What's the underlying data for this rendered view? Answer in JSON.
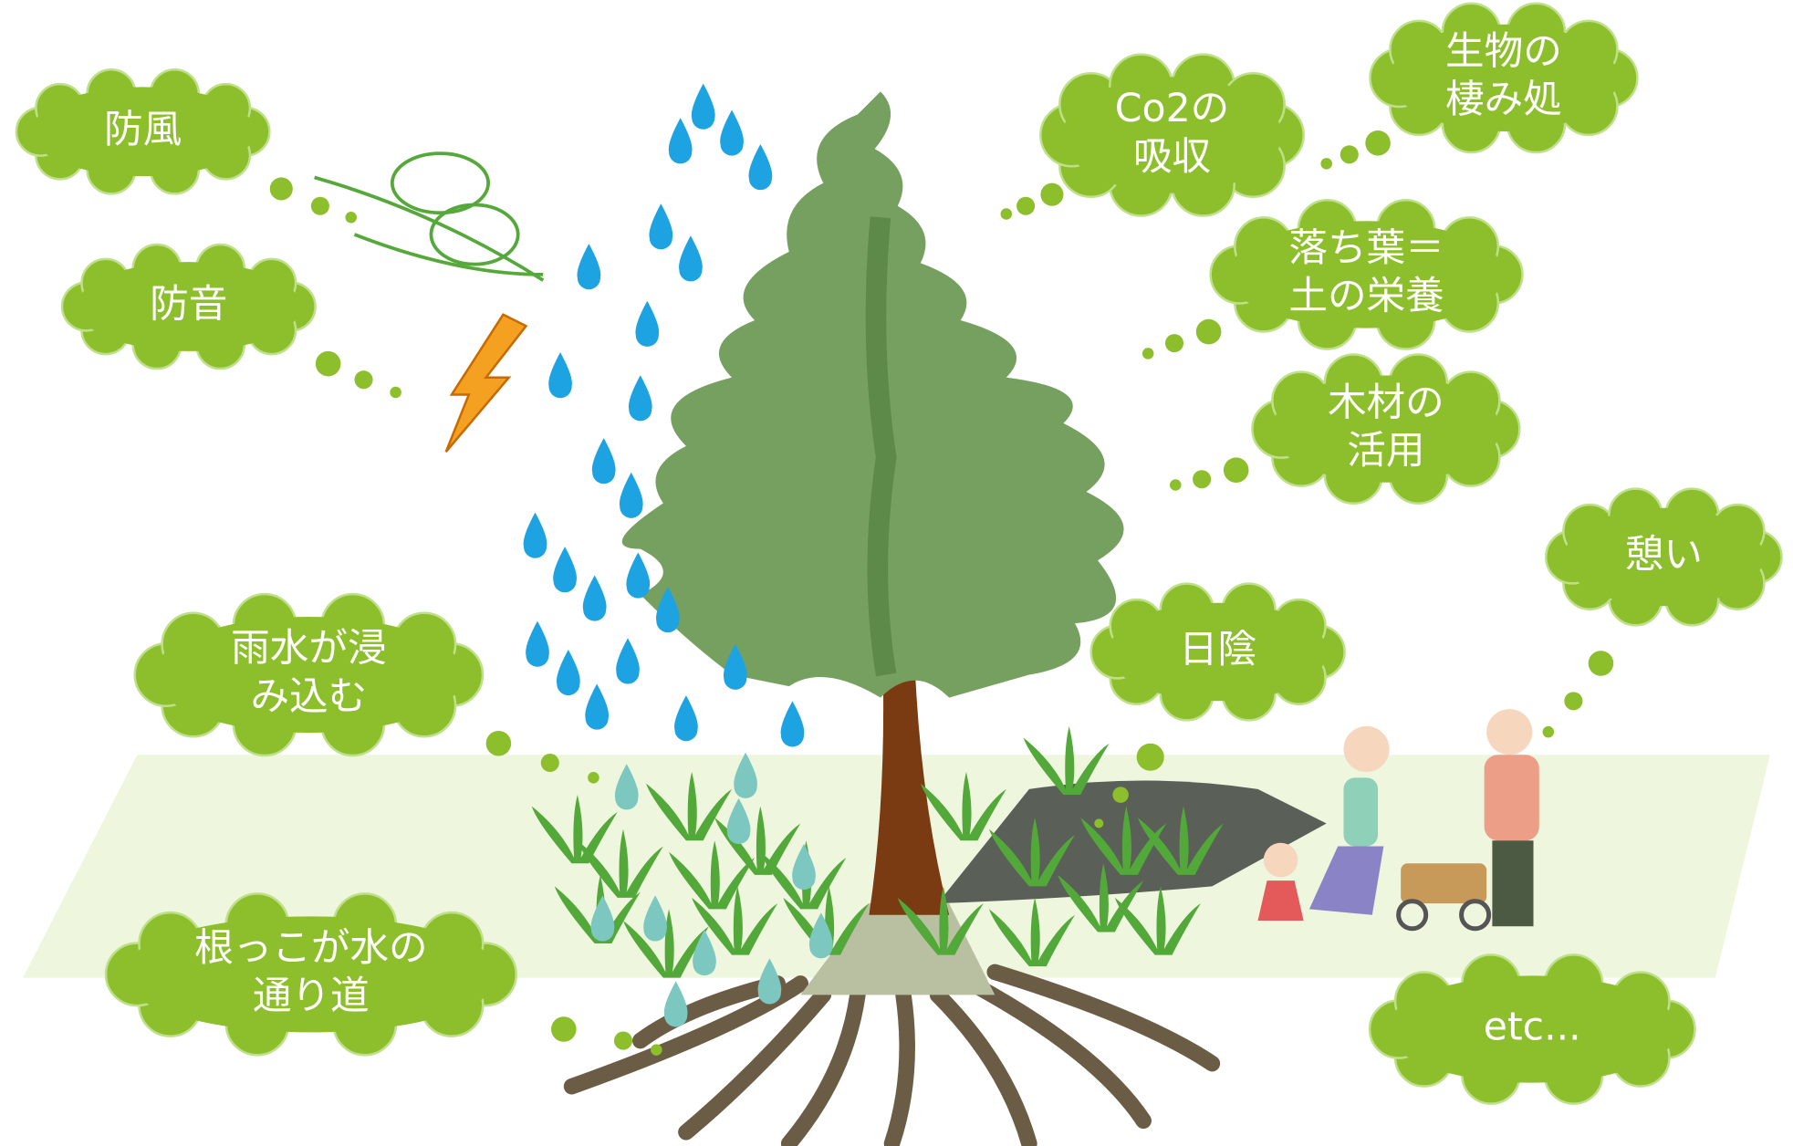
{
  "bubbles": [
    {
      "lines": [
        "防風"
      ]
    },
    {
      "lines": [
        "防音"
      ]
    },
    {
      "lines": [
        "Co2の",
        "吸収"
      ]
    },
    {
      "lines": [
        "生物の",
        "棲み処"
      ]
    },
    {
      "lines": [
        "落ち葉＝",
        "土の栄養"
      ]
    },
    {
      "lines": [
        "木材の",
        "活用"
      ]
    },
    {
      "lines": [
        "憩い"
      ]
    },
    {
      "lines": [
        "日陰"
      ]
    },
    {
      "lines": [
        "雨水が浸",
        "み込む"
      ]
    },
    {
      "lines": [
        "根っこが水の",
        "通り道"
      ]
    },
    {
      "lines": [
        "etc..."
      ]
    }
  ]
}
